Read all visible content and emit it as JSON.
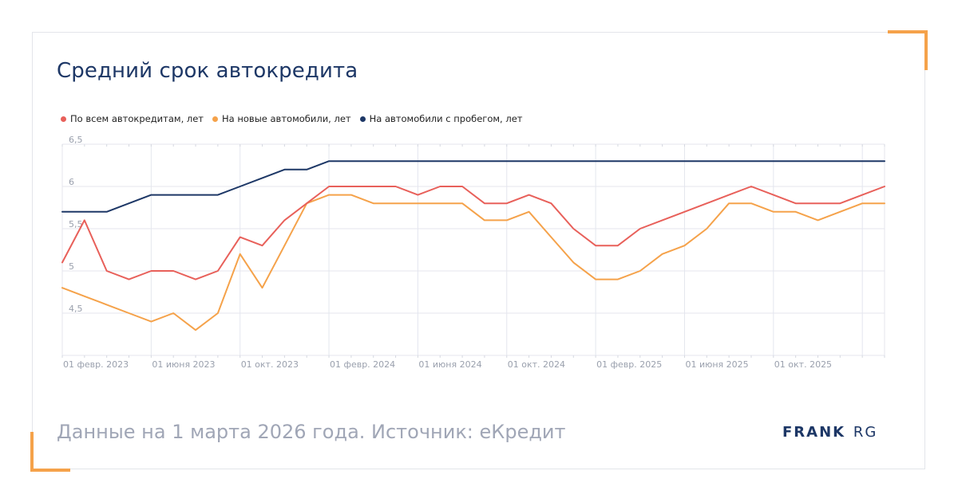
{
  "title": "Средний срок автокредита",
  "footer": "Данные на 1 марта 2026 года. Источник: еКредит",
  "logo": {
    "brand": "FRANK",
    "suffix": "RG"
  },
  "colors": {
    "accent": "#f5a24a",
    "title": "#1d3766",
    "red": "#e8605a",
    "orange": "#f5a24a",
    "navy": "#1d3766"
  },
  "chart_data": {
    "type": "line",
    "title": "Средний срок автокредита",
    "ylim": [
      4,
      6.5
    ],
    "yticks": [
      {
        "value": 6.5,
        "label": "6,5"
      },
      {
        "value": 6,
        "label": "6"
      },
      {
        "value": 5.5,
        "label": "5,5"
      },
      {
        "value": 5,
        "label": "5"
      },
      {
        "value": 4.5,
        "label": "4,5"
      }
    ],
    "xticks": [
      {
        "index": 0,
        "label": "01 февр. 2023"
      },
      {
        "index": 4,
        "label": "01 июня 2023"
      },
      {
        "index": 8,
        "label": "01 окт. 2023"
      },
      {
        "index": 12,
        "label": "01 февр. 2024"
      },
      {
        "index": 16,
        "label": "01 июня 2024"
      },
      {
        "index": 20,
        "label": "01 окт. 2024"
      },
      {
        "index": 24,
        "label": "01 февр. 2025"
      },
      {
        "index": 28,
        "label": "01 июня 2025"
      },
      {
        "index": 32,
        "label": "01 окт. 2025"
      }
    ],
    "grid": true,
    "legend_position": "top-left",
    "series": [
      {
        "name": "По всем автокредитам, лет",
        "color": "#e8605a",
        "values": [
          5.1,
          5.6,
          5.0,
          4.9,
          5.0,
          5.0,
          4.9,
          5.0,
          5.4,
          5.3,
          5.6,
          5.8,
          6.0,
          6.0,
          6.0,
          6.0,
          5.9,
          6.0,
          6.0,
          5.8,
          5.8,
          5.9,
          5.8,
          5.5,
          5.3,
          5.3,
          5.5,
          5.6,
          5.7,
          5.8,
          5.9,
          6.0,
          5.9,
          5.8,
          5.8,
          5.8,
          5.9,
          6.0
        ]
      },
      {
        "name": "На новые автомобили, лет",
        "color": "#f5a24a",
        "values": [
          4.8,
          4.7,
          4.6,
          4.5,
          4.4,
          4.5,
          4.3,
          4.5,
          5.2,
          4.8,
          5.3,
          5.8,
          5.9,
          5.9,
          5.8,
          5.8,
          5.8,
          5.8,
          5.8,
          5.6,
          5.6,
          5.7,
          5.4,
          5.1,
          4.9,
          4.9,
          5.0,
          5.2,
          5.3,
          5.5,
          5.8,
          5.8,
          5.7,
          5.7,
          5.6,
          5.7,
          5.8,
          5.8
        ]
      },
      {
        "name": "На автомобили с пробегом, лет",
        "color": "#1d3766",
        "values": [
          5.7,
          5.7,
          5.7,
          5.8,
          5.9,
          5.9,
          5.9,
          5.9,
          6.0,
          6.1,
          6.2,
          6.2,
          6.3,
          6.3,
          6.3,
          6.3,
          6.3,
          6.3,
          6.3,
          6.3,
          6.3,
          6.3,
          6.3,
          6.3,
          6.3,
          6.3,
          6.3,
          6.3,
          6.3,
          6.3,
          6.3,
          6.3,
          6.3,
          6.3,
          6.3,
          6.3,
          6.3,
          6.3
        ]
      }
    ]
  }
}
